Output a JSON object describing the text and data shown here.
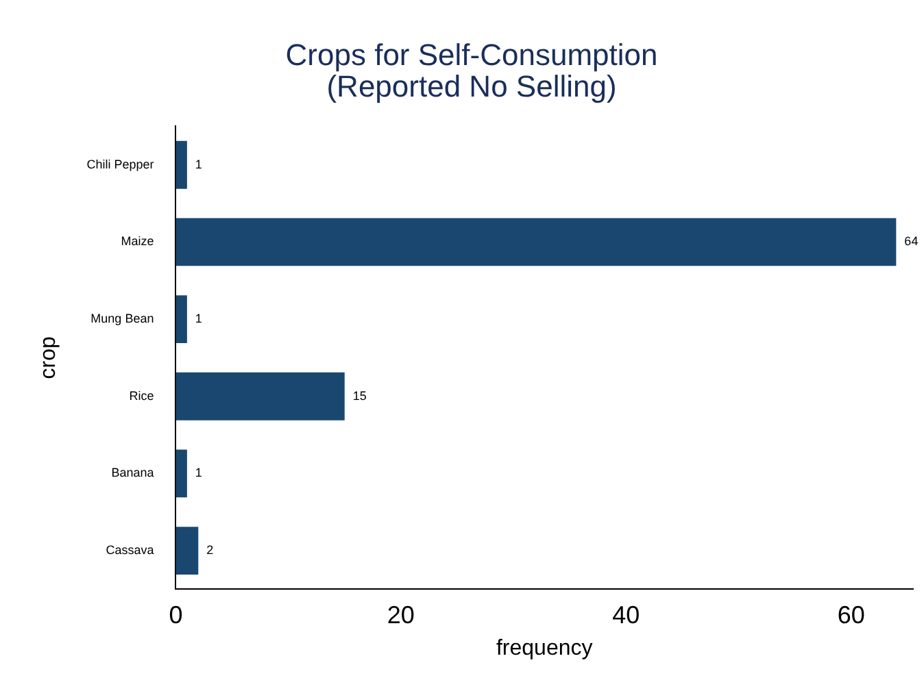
{
  "chart_data": {
    "type": "bar",
    "orientation": "horizontal",
    "title": "Crops for Self-Consumption\n(Reported No Selling)",
    "xlabel": "frequency",
    "ylabel": "crop",
    "categories": [
      "Chili Pepper",
      "Maize",
      "Mung Bean",
      "Rice",
      "Banana",
      "Cassava"
    ],
    "values": [
      1,
      64,
      1,
      15,
      1,
      2
    ],
    "color": "#1a476f",
    "xlim": [
      0,
      65.5
    ],
    "xticks": [
      0,
      20,
      40,
      60
    ],
    "grid": false,
    "legend": false,
    "data_labels": true
  }
}
